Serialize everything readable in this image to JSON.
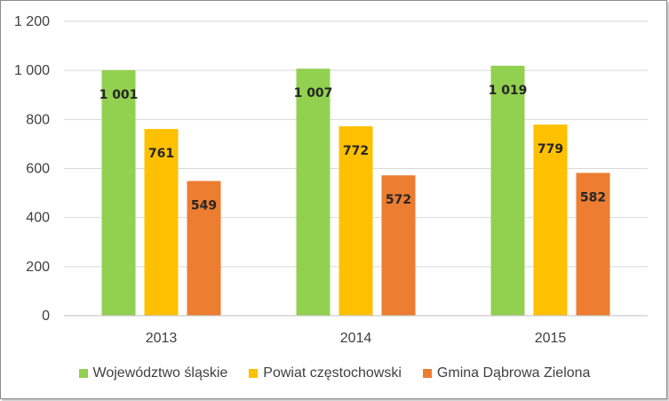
{
  "chart_data": {
    "type": "bar",
    "title": "",
    "xlabel": "",
    "ylabel": "",
    "categories": [
      "2013",
      "2014",
      "2015"
    ],
    "series": [
      {
        "name": "Województwo śląskie",
        "values": [
          1001,
          1007,
          1019
        ],
        "labels": [
          "1 001",
          "1 007",
          "1 019"
        ],
        "color": "#92d050"
      },
      {
        "name": "Powiat częstochowski",
        "values": [
          761,
          772,
          779
        ],
        "labels": [
          "761",
          "772",
          "779"
        ],
        "color": "#ffc000"
      },
      {
        "name": "Gmina Dąbrowa Zielona",
        "values": [
          549,
          572,
          582
        ],
        "labels": [
          "549",
          "572",
          "582"
        ],
        "color": "#ed7d31"
      }
    ],
    "ylim": [
      0,
      1200
    ],
    "yticks": [
      0,
      200,
      400,
      600,
      800,
      1000,
      1200
    ],
    "ytick_labels": [
      "0",
      "200",
      "400",
      "600",
      "800",
      "1 000",
      "1 200"
    ],
    "grid": true,
    "legend_position": "bottom"
  }
}
